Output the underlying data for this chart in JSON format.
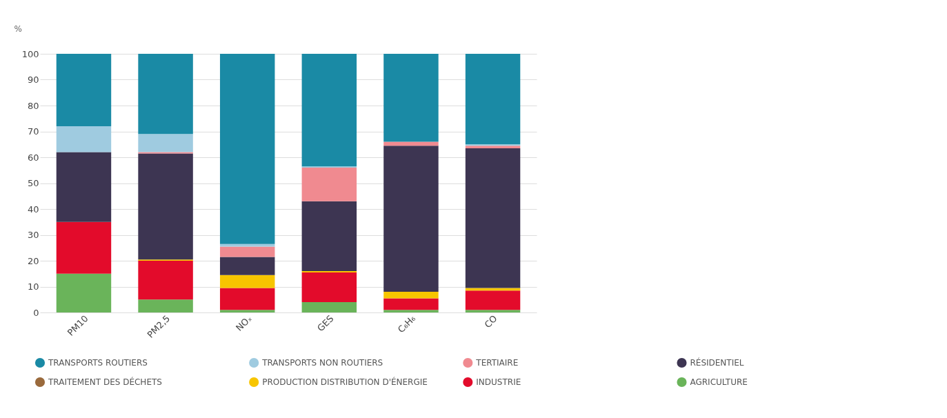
{
  "chart_data": {
    "type": "bar",
    "stacked": true,
    "ylabel": "%",
    "categories": [
      "PM10",
      "PM2,5",
      "NOₓ",
      "GES",
      "C₆H₆",
      "CO"
    ],
    "ylim": [
      0,
      100
    ],
    "yticks": [
      0,
      10,
      20,
      30,
      40,
      50,
      60,
      70,
      80,
      90,
      100
    ],
    "grid": "y",
    "legend": "bottom",
    "series": [
      {
        "name": "AGRICULTURE",
        "color": "#6ab45a",
        "values": [
          15,
          5,
          1,
          4,
          1,
          1
        ]
      },
      {
        "name": "INDUSTRIE",
        "color": "#e30b2b",
        "values": [
          20,
          15,
          8.5,
          11.5,
          4.5,
          7.5
        ]
      },
      {
        "name": "PRODUCTION DISTRIBUTION D'ÉNERGIE",
        "color": "#f7c500",
        "values": [
          0,
          0.5,
          5,
          0.5,
          2.5,
          1
        ]
      },
      {
        "name": "TRAITEMENT DES DÉCHETS",
        "color": "#9a6a3c",
        "values": [
          0,
          0,
          0,
          0,
          0,
          0
        ]
      },
      {
        "name": "RÉSIDENTIEL",
        "color": "#3d3552",
        "values": [
          27,
          41,
          7,
          27,
          56.5,
          54
        ]
      },
      {
        "name": "TERTIAIRE",
        "color": "#f08a90",
        "values": [
          0,
          0.5,
          4,
          13,
          1.5,
          1
        ]
      },
      {
        "name": "TRANSPORTS NON ROUTIERS",
        "color": "#9fcbe0",
        "values": [
          10,
          7,
          1,
          0.5,
          0,
          0.5
        ]
      },
      {
        "name": "TRANSPORTS ROUTIERS",
        "color": "#1a8aa5",
        "values": [
          28,
          31,
          73.5,
          43.5,
          34,
          35
        ]
      }
    ]
  }
}
